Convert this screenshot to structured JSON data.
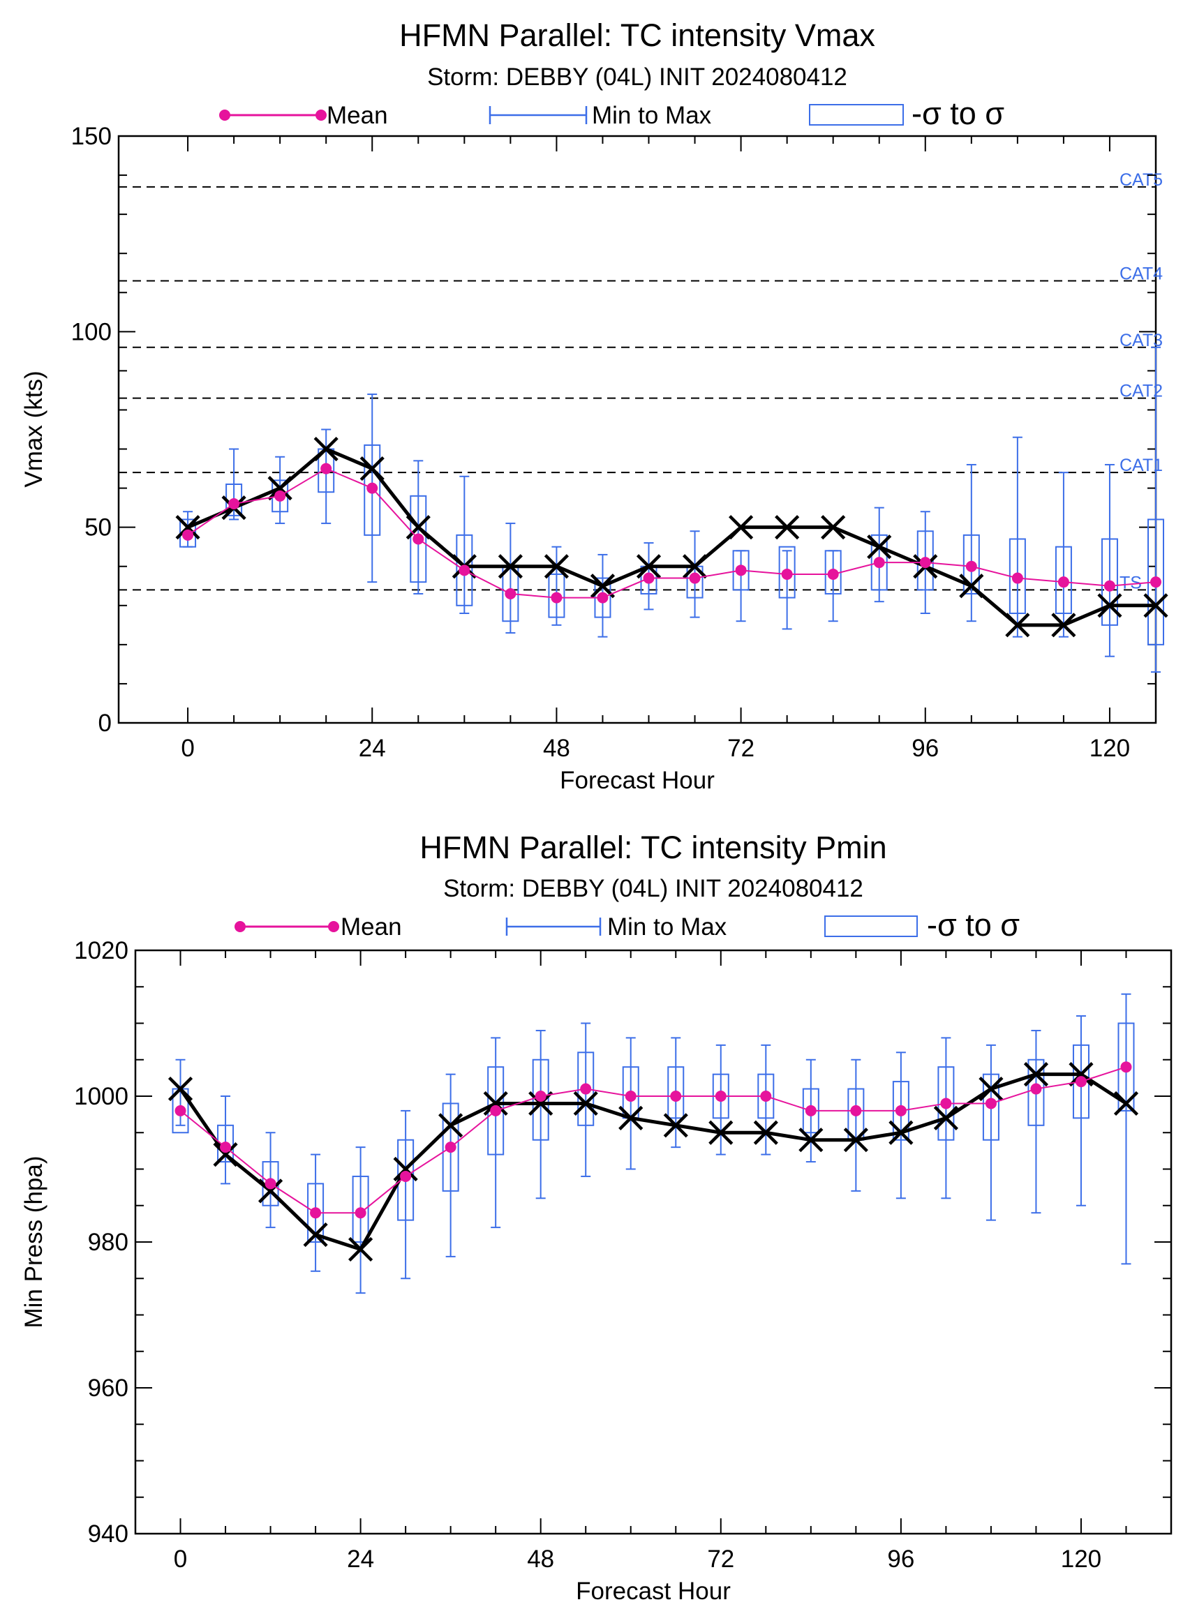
{
  "colors": {
    "mean": "#e6139c",
    "spread": "#3c6ee8",
    "observed": "#000000",
    "category": "#3c6ee8"
  },
  "legend": {
    "mean_label": "Mean",
    "minmax_label": "Min to Max",
    "sigma_label": "-σ to σ"
  },
  "chart_data": [
    {
      "type": "line",
      "title": "HFMN Parallel: TC intensity Vmax",
      "subtitle": "Storm: DEBBY (04L) INIT 2024080412",
      "xlabel": "Forecast Hour",
      "ylabel": "Vmax (kts)",
      "xlim": [
        -9,
        126
      ],
      "ylim": [
        0,
        150
      ],
      "xticks": [
        0,
        24,
        48,
        72,
        96,
        120
      ],
      "yticks": [
        0,
        50,
        100,
        150
      ],
      "x": [
        0,
        6,
        12,
        18,
        24,
        30,
        36,
        42,
        48,
        54,
        60,
        66,
        72,
        78,
        84,
        90,
        96,
        102,
        108,
        114,
        120,
        126
      ],
      "series": [
        {
          "name": "Mean",
          "values": [
            48,
            56,
            58,
            65,
            60,
            47,
            39,
            33,
            32,
            32,
            37,
            37,
            39,
            38,
            38,
            41,
            41,
            40,
            37,
            36,
            35,
            36
          ]
        },
        {
          "name": "Min to Max",
          "min": [
            45,
            52,
            51,
            51,
            36,
            33,
            28,
            23,
            25,
            22,
            29,
            27,
            26,
            24,
            26,
            31,
            28,
            26,
            22,
            22,
            17,
            13
          ],
          "max": [
            54,
            70,
            68,
            75,
            84,
            67,
            63,
            51,
            45,
            43,
            46,
            49,
            44,
            44,
            44,
            55,
            54,
            66,
            73,
            64,
            66,
            96
          ]
        },
        {
          "name": "-σ to σ",
          "low": [
            45,
            53,
            54,
            59,
            48,
            36,
            30,
            26,
            27,
            27,
            33,
            32,
            34,
            32,
            33,
            34,
            34,
            33,
            28,
            28,
            25,
            20
          ],
          "high": [
            52,
            61,
            62,
            70,
            71,
            58,
            48,
            40,
            38,
            37,
            40,
            40,
            44,
            45,
            44,
            48,
            49,
            48,
            47,
            45,
            47,
            52
          ]
        },
        {
          "name": "",
          "values": [
            50,
            55,
            60,
            70,
            65,
            50,
            40,
            40,
            40,
            35,
            40,
            40,
            50,
            50,
            50,
            45,
            40,
            35,
            25,
            25,
            30,
            30
          ]
        }
      ],
      "reference_lines": [
        {
          "label": "CAT5",
          "value": 137
        },
        {
          "label": "CAT4",
          "value": 113
        },
        {
          "label": "CAT3",
          "value": 96
        },
        {
          "label": "CAT2",
          "value": 83
        },
        {
          "label": "CAT1",
          "value": 64
        },
        {
          "label": "TS",
          "value": 34
        }
      ]
    },
    {
      "type": "line",
      "title": "HFMN Parallel: TC intensity Pmin",
      "subtitle": "Storm: DEBBY (04L) INIT 2024080412",
      "xlabel": "Forecast Hour",
      "ylabel": "Min Press (hpa)",
      "xlim": [
        -6,
        132
      ],
      "ylim": [
        940,
        1020
      ],
      "xticks": [
        0,
        24,
        48,
        72,
        96,
        120
      ],
      "yticks": [
        940,
        960,
        980,
        1000,
        1020
      ],
      "x": [
        0,
        6,
        12,
        18,
        24,
        30,
        36,
        42,
        48,
        54,
        60,
        66,
        72,
        78,
        84,
        90,
        96,
        102,
        108,
        114,
        120,
        126
      ],
      "series": [
        {
          "name": "Mean",
          "values": [
            998,
            993,
            988,
            984,
            984,
            989,
            993,
            998,
            1000,
            1001,
            1000,
            1000,
            1000,
            1000,
            998,
            998,
            998,
            999,
            999,
            1001,
            1002,
            1004
          ]
        },
        {
          "name": "Min to Max",
          "min": [
            996,
            988,
            982,
            976,
            973,
            975,
            978,
            982,
            986,
            989,
            990,
            993,
            992,
            992,
            991,
            987,
            986,
            986,
            983,
            984,
            985,
            977
          ]
        },
        {
          "name": "-σ to σ",
          "low": [
            995,
            991,
            985,
            980,
            980,
            983,
            987,
            992,
            994,
            996,
            997,
            997,
            997,
            997,
            995,
            994,
            994,
            994,
            994,
            996,
            997,
            998
          ],
          "high": [
            1001,
            996,
            991,
            988,
            989,
            994,
            999,
            1004,
            1005,
            1006,
            1004,
            1004,
            1003,
            1003,
            1001,
            1001,
            1002,
            1004,
            1003,
            1005,
            1007,
            1010
          ]
        },
        {
          "name": "",
          "values": [
            1001,
            992,
            987,
            981,
            979,
            990,
            996,
            999,
            999,
            999,
            997,
            996,
            995,
            995,
            994,
            994,
            995,
            997,
            1001,
            1003,
            1003,
            999
          ]
        }
      ]
    }
  ]
}
